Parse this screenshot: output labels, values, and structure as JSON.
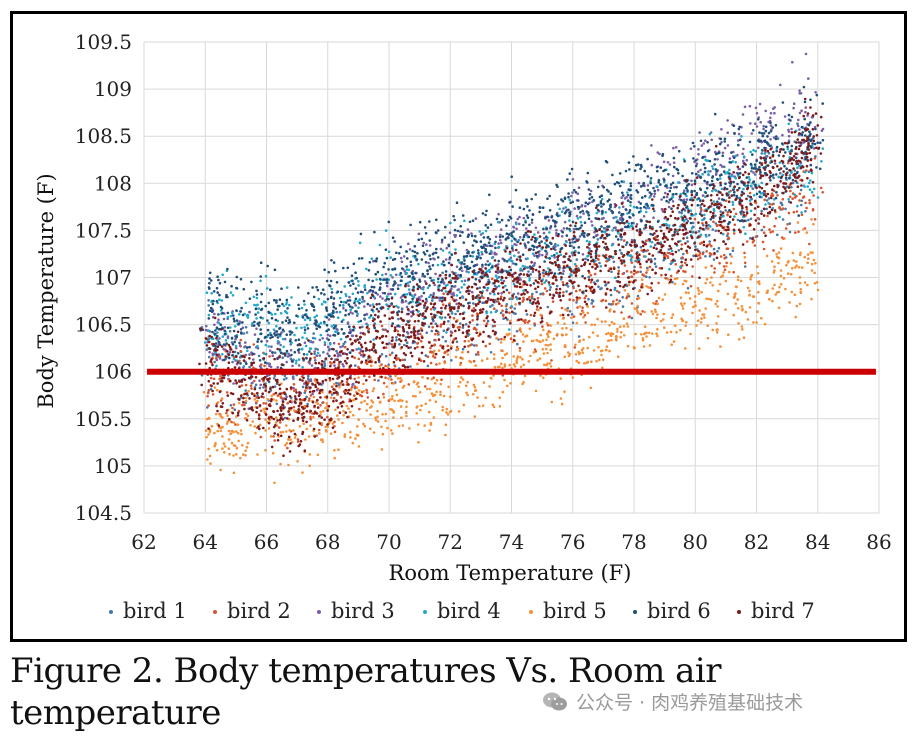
{
  "chart_data": {
    "type": "scatter",
    "title": "",
    "xlabel": "Room Temperature (F)",
    "ylabel": "Body Temperature (F)",
    "xlim": [
      62,
      86
    ],
    "ylim": [
      104.5,
      109.5
    ],
    "xticks": [
      "62",
      "64",
      "66",
      "68",
      "70",
      "72",
      "74",
      "76",
      "78",
      "80",
      "82",
      "84",
      "86"
    ],
    "yticks": [
      "104.5",
      "105",
      "105.5",
      "106",
      "106.5",
      "107",
      "107.5",
      "108",
      "108.5",
      "109",
      "109.5"
    ],
    "grid": true,
    "legend_position": "bottom",
    "reference_line": {
      "y": 106,
      "x_range": [
        62.1,
        85.9
      ],
      "color": "#cc0000"
    },
    "series": [
      {
        "name": "bird 1",
        "color": "#4a76a8",
        "trend": [
          [
            64,
            106.2
          ],
          [
            67,
            105.9
          ],
          [
            70,
            106.3
          ],
          [
            74,
            106.8
          ],
          [
            78,
            107.2
          ],
          [
            82,
            107.8
          ],
          [
            84,
            108.2
          ]
        ],
        "spread": 0.45,
        "count": 110
      },
      {
        "name": "bird 2",
        "color": "#d8562f",
        "trend": [
          [
            64,
            106.0
          ],
          [
            67,
            105.7
          ],
          [
            70,
            106.1
          ],
          [
            74,
            106.6
          ],
          [
            78,
            107.0
          ],
          [
            82,
            107.6
          ],
          [
            84,
            107.9
          ]
        ],
        "spread": 0.42,
        "count": 110
      },
      {
        "name": "bird 3",
        "color": "#7b5ea7",
        "trend": [
          [
            64,
            106.4
          ],
          [
            67,
            106.0
          ],
          [
            70,
            106.8
          ],
          [
            74,
            107.3
          ],
          [
            78,
            107.8
          ],
          [
            82,
            108.5
          ],
          [
            84,
            108.8
          ]
        ],
        "spread": 0.42,
        "count": 120
      },
      {
        "name": "bird 4",
        "color": "#22a9c9",
        "trend": [
          [
            64,
            106.6
          ],
          [
            67,
            106.4
          ],
          [
            70,
            106.9
          ],
          [
            74,
            107.1
          ],
          [
            78,
            107.5
          ],
          [
            82,
            108.0
          ],
          [
            84,
            108.2
          ]
        ],
        "spread": 0.45,
        "count": 110
      },
      {
        "name": "bird 5",
        "color": "#f4913a",
        "trend": [
          [
            64,
            105.4
          ],
          [
            67,
            105.4
          ],
          [
            70,
            105.7
          ],
          [
            74,
            106.1
          ],
          [
            78,
            106.5
          ],
          [
            82,
            106.9
          ],
          [
            84,
            107.2
          ]
        ],
        "spread": 0.4,
        "count": 150
      },
      {
        "name": "bird 6",
        "color": "#1f4e79",
        "trend": [
          [
            64,
            106.6
          ],
          [
            67,
            106.5
          ],
          [
            70,
            107.0
          ],
          [
            74,
            107.4
          ],
          [
            78,
            107.8
          ],
          [
            82,
            108.2
          ],
          [
            84,
            108.5
          ]
        ],
        "spread": 0.45,
        "count": 200
      },
      {
        "name": "bird 7",
        "color": "#7d1a1a",
        "trend": [
          [
            64,
            106.0
          ],
          [
            67,
            105.6
          ],
          [
            70,
            106.4
          ],
          [
            74,
            106.9
          ],
          [
            78,
            107.3
          ],
          [
            82,
            107.9
          ],
          [
            84,
            108.4
          ]
        ],
        "spread": 0.42,
        "count": 240
      }
    ]
  },
  "caption": {
    "line1": "Figure 2.  Body temperatures Vs. Room air",
    "line2": "temperature"
  },
  "watermark": {
    "text": "公众号 · 肉鸡养殖基础技术",
    "icon": "wechat-bubble-icon"
  }
}
